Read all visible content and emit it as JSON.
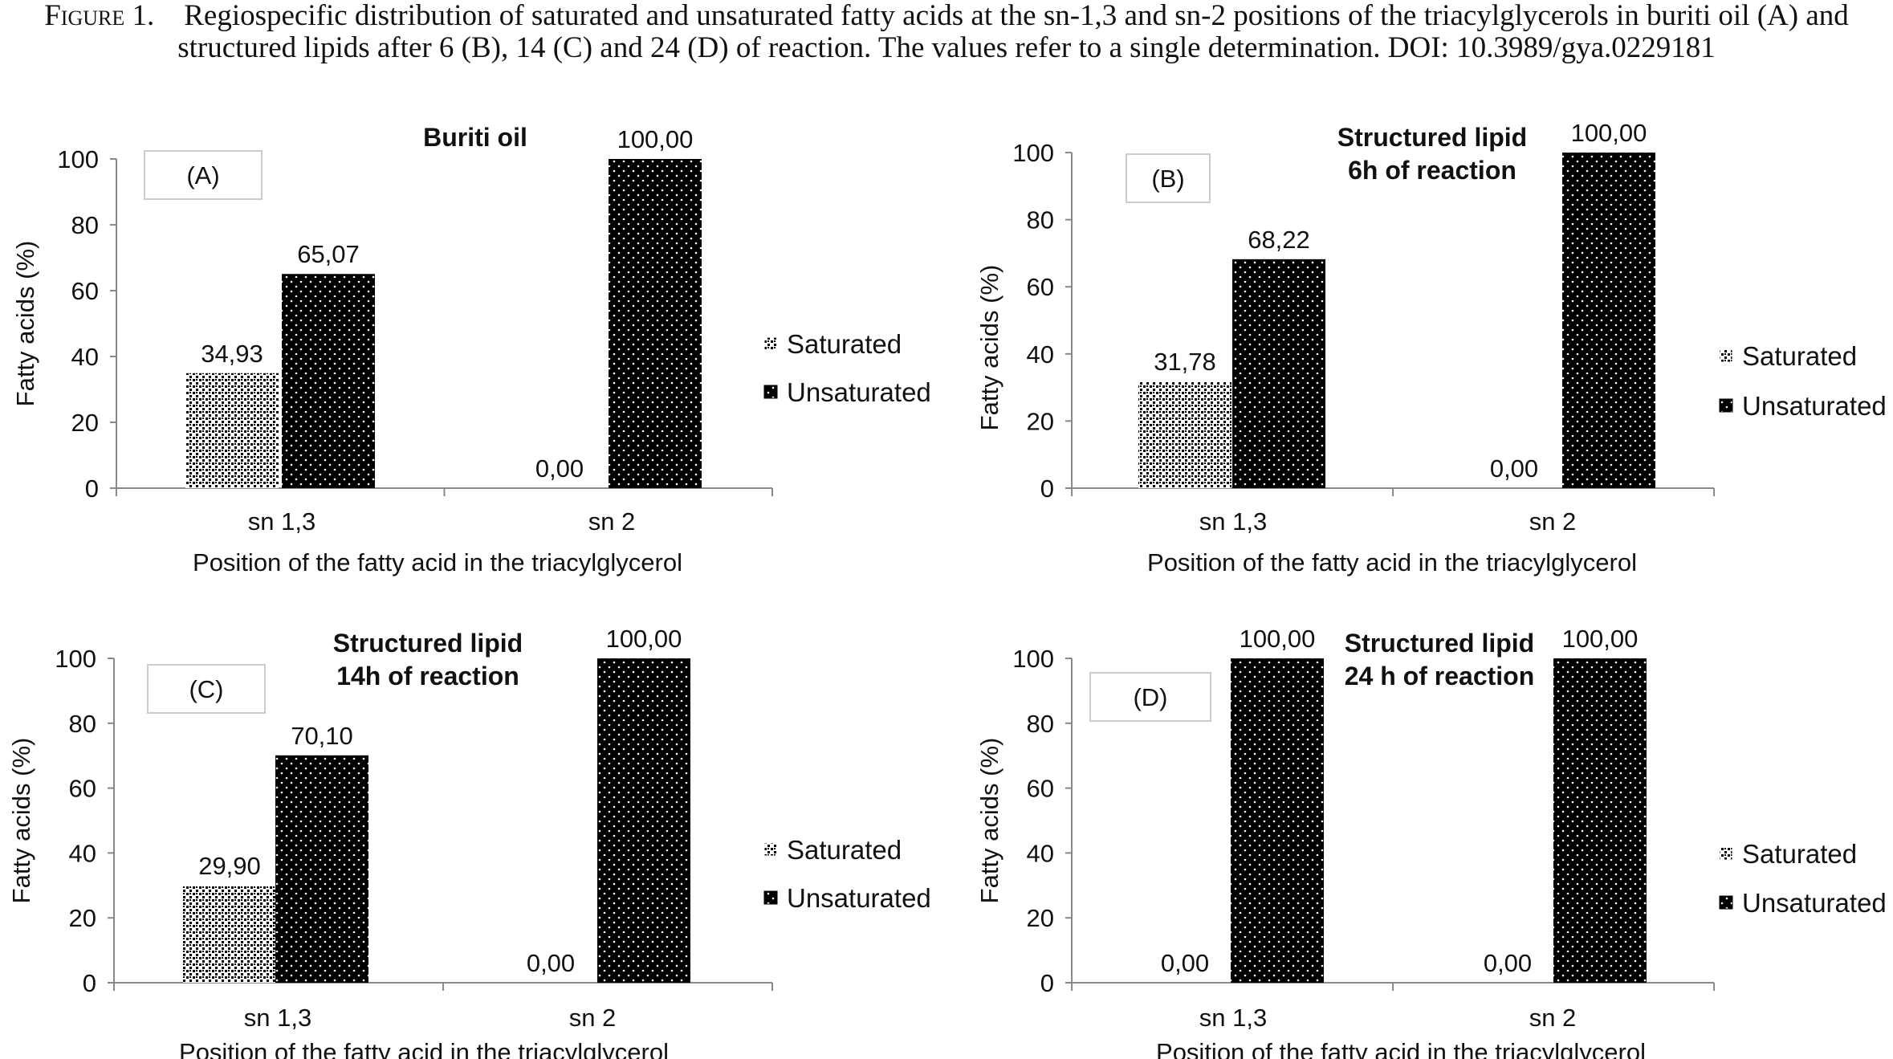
{
  "caption": {
    "figure_label": "Figure 1.",
    "text": "Regiospecific distribution of saturated and unsaturated fatty acids at the sn-1,3 and sn-2 positions of the triacylglycerols in buriti oil (A) and structured lipids after 6 (B), 14 (C) and 24 (D) of reaction. The values refer to a single determination. DOI: 10.3989/gya.0229181"
  },
  "colors": {
    "saturated": "#ffffff",
    "unsaturated": "#000000",
    "axis": "#888888"
  },
  "chart_data": [
    {
      "panel": "(A)",
      "type": "bar",
      "title_lines": [
        "Buriti oil"
      ],
      "categories": [
        "sn 1,3",
        "sn 2"
      ],
      "series": [
        {
          "name": "Saturated",
          "values": [
            34.93,
            0.0
          ],
          "labels": [
            "34,93",
            "0,00"
          ]
        },
        {
          "name": "Unsaturated",
          "values": [
            65.07,
            100.0
          ],
          "labels": [
            "65,07",
            "100,00"
          ]
        }
      ],
      "xlabel": "Position of the fatty acid in the triacylglycerol",
      "ylabel": "Fatty acids (%)",
      "ylim": [
        0,
        100
      ],
      "yticks": [
        0,
        20,
        40,
        60,
        80,
        100
      ],
      "legend": "right",
      "grid": false
    },
    {
      "panel": "(B)",
      "type": "bar",
      "title_lines": [
        "Structured lipid",
        "6h of reaction"
      ],
      "categories": [
        "sn 1,3",
        "sn 2"
      ],
      "series": [
        {
          "name": "Saturated",
          "values": [
            31.78,
            0.0
          ],
          "labels": [
            "31,78",
            "0,00"
          ]
        },
        {
          "name": "Unsaturated",
          "values": [
            68.22,
            100.0
          ],
          "labels": [
            "68,22",
            "100,00"
          ]
        }
      ],
      "xlabel": "Position of the fatty acid in the triacylglycerol",
      "ylabel": "Fatty acids (%)",
      "ylim": [
        0,
        100
      ],
      "yticks": [
        0,
        20,
        40,
        60,
        80,
        100
      ],
      "legend": "right",
      "grid": false
    },
    {
      "panel": "(C)",
      "type": "bar",
      "title_lines": [
        "Structured lipid",
        "14h of reaction"
      ],
      "categories": [
        "sn 1,3",
        "sn 2"
      ],
      "series": [
        {
          "name": "Saturated",
          "values": [
            29.9,
            0.0
          ],
          "labels": [
            "29,90",
            "0,00"
          ]
        },
        {
          "name": "Unsaturated",
          "values": [
            70.1,
            100.0
          ],
          "labels": [
            "70,10",
            "100,00"
          ]
        }
      ],
      "xlabel": "Position of the fatty acid in the triacylglycerol",
      "ylabel": "Fatty acids (%)",
      "ylim": [
        0,
        100
      ],
      "yticks": [
        0,
        20,
        40,
        60,
        80,
        100
      ],
      "legend": "right",
      "grid": false
    },
    {
      "panel": "(D)",
      "type": "bar",
      "title_lines": [
        "Structured lipid",
        "24 h of reaction"
      ],
      "categories": [
        "sn 1,3",
        "sn 2"
      ],
      "series": [
        {
          "name": "Saturated",
          "values": [
            0.0,
            0.0
          ],
          "labels": [
            "0,00",
            "0,00"
          ]
        },
        {
          "name": "Unsaturated",
          "values": [
            100.0,
            100.0
          ],
          "labels": [
            "100,00",
            "100,00"
          ]
        }
      ],
      "xlabel": "Position of the fatty acid in the triacylglycerol",
      "ylabel": "Fatty acids (%)",
      "ylim": [
        0,
        100
      ],
      "yticks": [
        0,
        20,
        40,
        60,
        80,
        100
      ],
      "legend": "right",
      "grid": false
    }
  ]
}
